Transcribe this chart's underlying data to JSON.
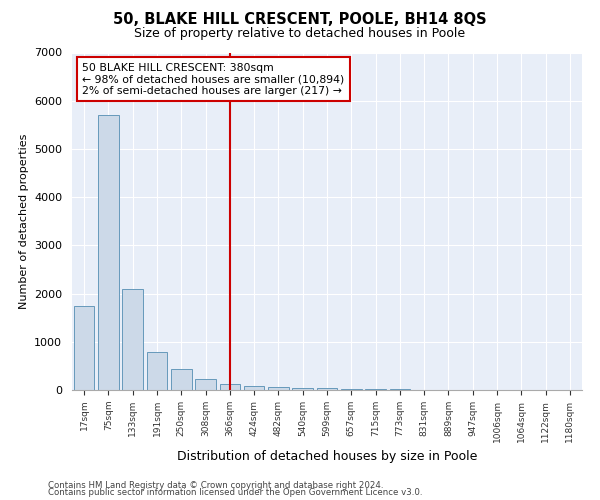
{
  "title": "50, BLAKE HILL CRESCENT, POOLE, BH14 8QS",
  "subtitle": "Size of property relative to detached houses in Poole",
  "xlabel": "Distribution of detached houses by size in Poole",
  "ylabel": "Number of detached properties",
  "annotation_line1": "50 BLAKE HILL CRESCENT: 380sqm",
  "annotation_line2": "← 98% of detached houses are smaller (10,894)",
  "annotation_line3": "2% of semi-detached houses are larger (217) →",
  "bar_color": "#ccd9e8",
  "bar_edge_color": "#6699bb",
  "marker_color": "#cc0000",
  "background_color": "#e8eef8",
  "footnote1": "Contains HM Land Registry data © Crown copyright and database right 2024.",
  "footnote2": "Contains public sector information licensed under the Open Government Licence v3.0.",
  "categories": [
    "17sqm",
    "75sqm",
    "133sqm",
    "191sqm",
    "250sqm",
    "308sqm",
    "366sqm",
    "424sqm",
    "482sqm",
    "540sqm",
    "599sqm",
    "657sqm",
    "715sqm",
    "773sqm",
    "831sqm",
    "889sqm",
    "947sqm",
    "1006sqm",
    "1064sqm",
    "1122sqm",
    "1180sqm"
  ],
  "values": [
    1750,
    5700,
    2100,
    790,
    430,
    230,
    130,
    90,
    65,
    50,
    45,
    30,
    20,
    15,
    10,
    7,
    5,
    4,
    3,
    2,
    2
  ],
  "marker_idx": 6,
  "ylim": [
    0,
    7000
  ],
  "yticks": [
    0,
    1000,
    2000,
    3000,
    4000,
    5000,
    6000,
    7000
  ]
}
